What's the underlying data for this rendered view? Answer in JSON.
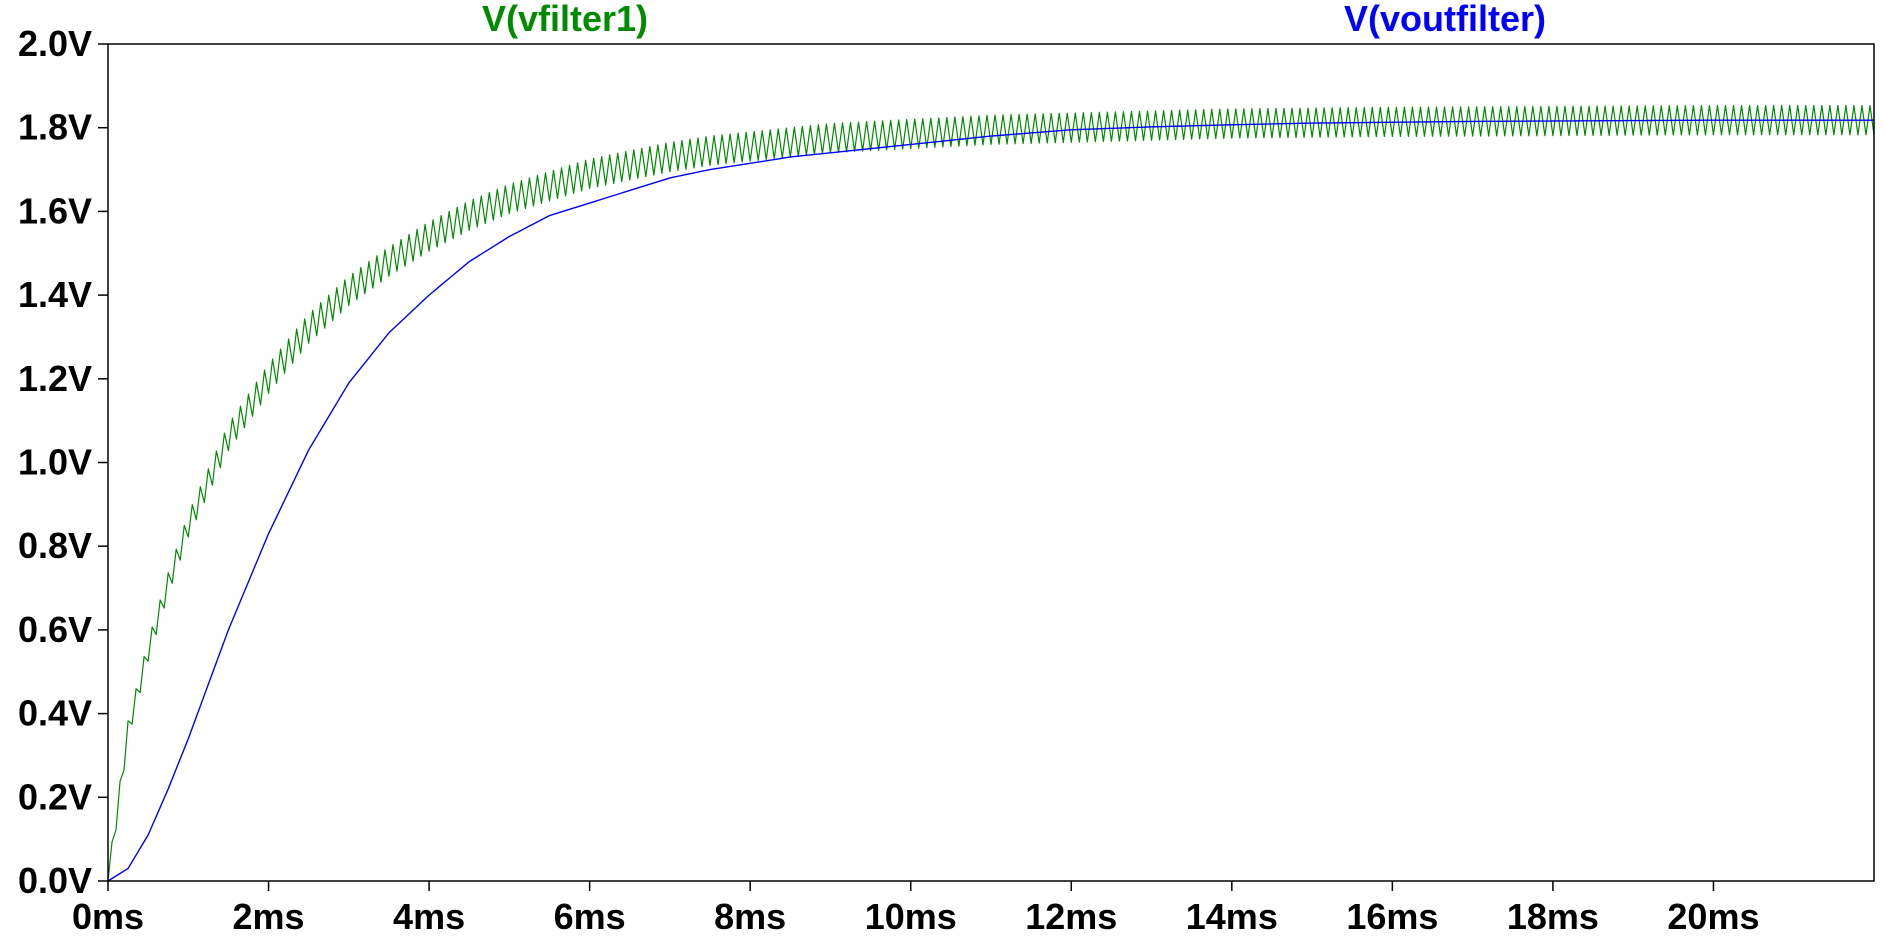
{
  "chart_data": {
    "type": "line",
    "title": "",
    "xlabel": "",
    "ylabel": "",
    "xlim": [
      0,
      22
    ],
    "ylim": [
      0,
      2.0
    ],
    "x_unit": "ms",
    "y_unit": "V",
    "x_ticks": [
      0,
      2,
      4,
      6,
      8,
      10,
      12,
      14,
      16,
      18,
      20
    ],
    "x_tick_labels": [
      "0ms",
      "2ms",
      "4ms",
      "6ms",
      "8ms",
      "10ms",
      "12ms",
      "14ms",
      "16ms",
      "18ms",
      "20ms"
    ],
    "y_ticks": [
      0,
      0.2,
      0.4,
      0.6,
      0.8,
      1.0,
      1.2,
      1.4,
      1.6,
      1.8,
      2.0
    ],
    "y_tick_labels": [
      "0.0V",
      "0.2V",
      "0.4V",
      "0.6V",
      "0.8V",
      "1.0V",
      "1.2V",
      "1.4V",
      "1.6V",
      "1.8V",
      "2.0V"
    ],
    "grid": false,
    "legend_placement": "top",
    "series": [
      {
        "name": "V(vfilter1)",
        "color": "#008c00",
        "x": [
          0,
          0.25,
          0.5,
          0.75,
          1,
          1.5,
          2,
          2.5,
          3,
          3.5,
          4,
          4.5,
          5,
          5.5,
          6,
          6.5,
          7,
          7.5,
          8,
          8.5,
          9,
          10,
          11,
          12,
          13,
          14,
          15,
          16,
          17,
          18,
          19,
          20,
          21,
          22
        ],
        "y": [
          0,
          0.36,
          0.55,
          0.71,
          0.85,
          1.06,
          1.2,
          1.32,
          1.41,
          1.48,
          1.54,
          1.59,
          1.63,
          1.66,
          1.69,
          1.71,
          1.73,
          1.745,
          1.755,
          1.765,
          1.775,
          1.785,
          1.795,
          1.8,
          1.805,
          1.81,
          1.812,
          1.814,
          1.815,
          1.816,
          1.817,
          1.818,
          1.818,
          1.818
        ],
        "ripple_peak_to_peak": 0.07,
        "ripple_period": 0.1
      },
      {
        "name": "V(voutfilter)",
        "color": "#0000ff",
        "x": [
          0,
          0.25,
          0.5,
          0.75,
          1,
          1.5,
          2,
          2.5,
          3,
          3.5,
          4,
          4.5,
          5,
          5.5,
          6,
          6.5,
          7,
          7.5,
          8,
          8.5,
          9,
          10,
          11,
          12,
          13,
          14,
          15,
          16,
          17,
          18,
          19,
          20,
          21,
          22
        ],
        "y": [
          0,
          0.03,
          0.11,
          0.22,
          0.34,
          0.6,
          0.83,
          1.03,
          1.19,
          1.31,
          1.4,
          1.48,
          1.54,
          1.59,
          1.62,
          1.65,
          1.68,
          1.7,
          1.715,
          1.73,
          1.74,
          1.76,
          1.78,
          1.795,
          1.802,
          1.807,
          1.811,
          1.813,
          1.815,
          1.816,
          1.817,
          1.818,
          1.818,
          1.818
        ]
      }
    ]
  }
}
